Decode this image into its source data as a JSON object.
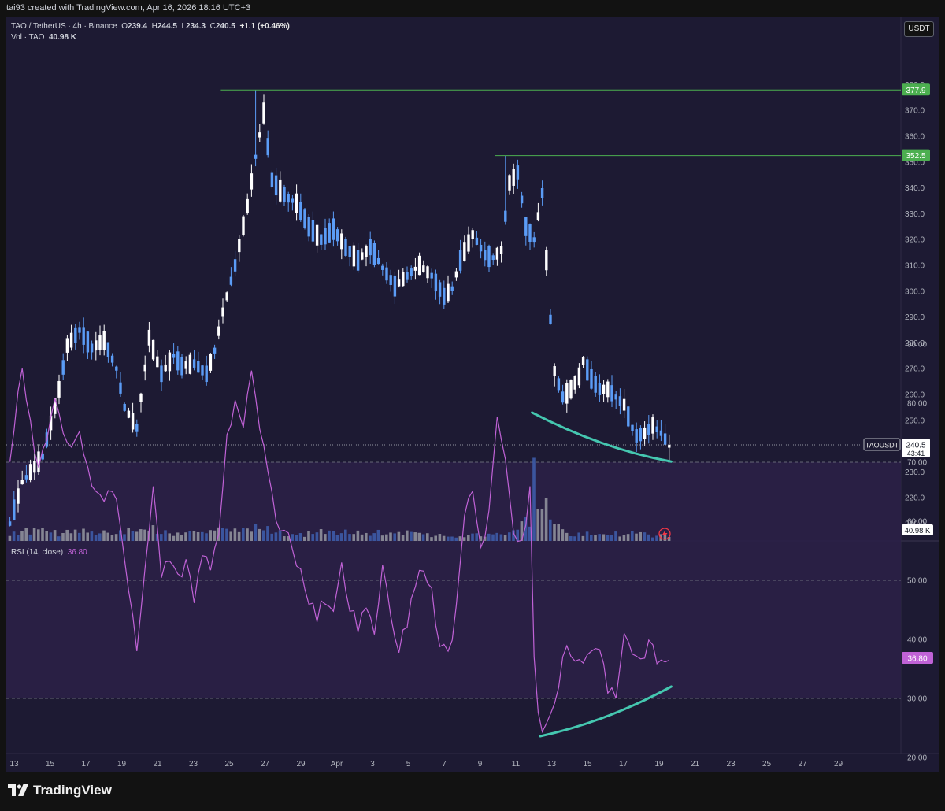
{
  "header": {
    "attribution": "tai93 created with TradingView.com, Apr 16, 2026 18:16 UTC+3"
  },
  "legend": {
    "symbol": "TAO / TetherUS · 4h · Binance",
    "o_label": "O",
    "o": "239.4",
    "h_label": "H",
    "h": "244.5",
    "l_label": "L",
    "l": "234.3",
    "c_label": "C",
    "c": "240.5",
    "change": "+1.1 (+0.46%)",
    "vol_label": "Vol · TAO",
    "vol": "40.98 K"
  },
  "currency_button": "USDT",
  "price_axis": {
    "ticks": [
      "380.0",
      "370.0",
      "360.0",
      "350.0",
      "340.0",
      "330.0",
      "320.0",
      "310.0",
      "300.0",
      "290.0",
      "280.0",
      "270.0",
      "260.0",
      "250.0",
      "240.0",
      "230.0",
      "220.0",
      "210.0"
    ],
    "markers": [
      {
        "label": "377.9",
        "price": 377.9,
        "color": "#4caf50"
      },
      {
        "label": "352.5",
        "price": 352.5,
        "color": "#4caf50"
      }
    ],
    "last_price": {
      "symbol": "TAOUSDT",
      "price": "240.5",
      "countdown": "43:41",
      "value": 240.5
    },
    "volume_label": "40.98 K"
  },
  "rsi": {
    "legend_title": "RSI (14, close)",
    "legend_value": "36.80",
    "ticks": [
      "90.00",
      "80.00",
      "70.00",
      "60.00",
      "50.00",
      "40.00",
      "30.00",
      "20.00"
    ],
    "value_label": "36.80",
    "overbought": 70,
    "midline": 50,
    "oversold": 30
  },
  "time_axis": [
    "13",
    "15",
    "17",
    "19",
    "21",
    "23",
    "25",
    "27",
    "29",
    "Apr",
    "3",
    "5",
    "7",
    "9",
    "11",
    "13",
    "15",
    "17",
    "19",
    "21",
    "23",
    "25",
    "27",
    "29"
  ],
  "footer": {
    "brand": "TradingView"
  },
  "colors": {
    "up": "#ffffff",
    "down": "#5b9cf6",
    "rsi_line": "#c062d6",
    "trendline": "#45c7b0",
    "level_line": "#4caf50",
    "pane_bg": "#1d1a33",
    "rsi_band": "#2b2046"
  },
  "chart_data": {
    "type": "candlestick",
    "symbol": "TAO / TetherUS",
    "timeframe": "4h",
    "exchange": "Binance",
    "last_ohlc": {
      "open": 239.4,
      "high": 244.5,
      "low": 234.3,
      "close": 240.5,
      "change": 1.1,
      "change_pct": 0.46
    },
    "ylim": [
      203,
      382
    ],
    "rsi_ylim": [
      20,
      90
    ],
    "x_labels": [
      "13",
      "15",
      "17",
      "19",
      "21",
      "23",
      "25",
      "27",
      "29",
      "Apr",
      "3",
      "5",
      "7",
      "9",
      "11",
      "13",
      "15",
      "17",
      "19",
      "21",
      "23",
      "25",
      "27",
      "29"
    ],
    "price_path": [
      [
        0,
        210
      ],
      [
        3,
        226
      ],
      [
        8,
        236
      ],
      [
        12,
        262
      ],
      [
        14,
        279
      ],
      [
        17,
        285
      ],
      [
        20,
        278
      ],
      [
        23,
        281
      ],
      [
        26,
        270
      ],
      [
        28,
        255
      ],
      [
        31,
        247
      ],
      [
        34,
        282
      ],
      [
        37,
        268
      ],
      [
        40,
        275
      ],
      [
        42,
        271
      ],
      [
        45,
        272
      ],
      [
        48,
        268
      ],
      [
        50,
        277
      ],
      [
        52,
        292
      ],
      [
        55,
        310
      ],
      [
        58,
        333
      ],
      [
        60,
        352
      ],
      [
        62,
        369
      ],
      [
        64,
        343
      ],
      [
        66,
        339
      ],
      [
        68,
        336
      ],
      [
        70,
        334
      ],
      [
        73,
        325
      ],
      [
        76,
        320
      ],
      [
        79,
        324
      ],
      [
        82,
        317
      ],
      [
        85,
        312
      ],
      [
        88,
        317
      ],
      [
        91,
        309
      ],
      [
        94,
        302
      ],
      [
        97,
        306
      ],
      [
        100,
        310
      ],
      [
        103,
        306
      ],
      [
        106,
        298
      ],
      [
        108,
        301
      ],
      [
        110,
        312
      ],
      [
        113,
        322
      ],
      [
        116,
        314
      ],
      [
        118,
        313
      ],
      [
        120,
        316
      ],
      [
        122,
        342
      ],
      [
        124,
        346
      ],
      [
        126,
        325
      ],
      [
        128,
        320
      ],
      [
        130,
        338
      ],
      [
        131,
        312
      ],
      [
        132,
        289
      ],
      [
        133,
        269
      ],
      [
        135,
        259
      ],
      [
        137,
        262
      ],
      [
        139,
        267
      ],
      [
        140,
        273
      ],
      [
        142,
        266
      ],
      [
        144,
        262
      ],
      [
        146,
        262
      ],
      [
        148,
        259
      ],
      [
        150,
        256
      ],
      [
        152,
        247
      ],
      [
        153,
        244
      ],
      [
        155,
        245
      ],
      [
        157,
        248
      ],
      [
        159,
        245
      ],
      [
        161,
        240.5
      ]
    ],
    "volume_path": [
      [
        0,
        10
      ],
      [
        6,
        14
      ],
      [
        12,
        9
      ],
      [
        18,
        14
      ],
      [
        26,
        9
      ],
      [
        33,
        17
      ],
      [
        40,
        10
      ],
      [
        48,
        9
      ],
      [
        52,
        16
      ],
      [
        56,
        12
      ],
      [
        60,
        17
      ],
      [
        66,
        10
      ],
      [
        72,
        9
      ],
      [
        80,
        12
      ],
      [
        88,
        8
      ],
      [
        94,
        14
      ],
      [
        100,
        8
      ],
      [
        106,
        7
      ],
      [
        112,
        8
      ],
      [
        116,
        8
      ],
      [
        119,
        15
      ],
      [
        123,
        10
      ],
      [
        126,
        30
      ],
      [
        127,
        18
      ],
      [
        128,
        74
      ],
      [
        129,
        45
      ],
      [
        130,
        38
      ],
      [
        131,
        50
      ],
      [
        132,
        40
      ],
      [
        134,
        16
      ],
      [
        136,
        9
      ],
      [
        140,
        10
      ],
      [
        146,
        11
      ],
      [
        152,
        9
      ],
      [
        158,
        6
      ],
      [
        161,
        6
      ]
    ],
    "rsi_path": [
      [
        0,
        70
      ],
      [
        2,
        82
      ],
      [
        3,
        85
      ],
      [
        5,
        76
      ],
      [
        7,
        68
      ],
      [
        9,
        74
      ],
      [
        11,
        80
      ],
      [
        13,
        76
      ],
      [
        15,
        72
      ],
      [
        17,
        74
      ],
      [
        19,
        69
      ],
      [
        21,
        65
      ],
      [
        23,
        64
      ],
      [
        25,
        66
      ],
      [
        27,
        60
      ],
      [
        29,
        48
      ],
      [
        31,
        38
      ],
      [
        33,
        53
      ],
      [
        35,
        66
      ],
      [
        37,
        50
      ],
      [
        39,
        54
      ],
      [
        41,
        50
      ],
      [
        43,
        53
      ],
      [
        45,
        47
      ],
      [
        47,
        54
      ],
      [
        49,
        52
      ],
      [
        51,
        58
      ],
      [
        53,
        74
      ],
      [
        55,
        80
      ],
      [
        57,
        77
      ],
      [
        59,
        85
      ],
      [
        61,
        76
      ],
      [
        63,
        68
      ],
      [
        65,
        60
      ],
      [
        67,
        59
      ],
      [
        69,
        56
      ],
      [
        71,
        51
      ],
      [
        73,
        47
      ],
      [
        75,
        44
      ],
      [
        77,
        47
      ],
      [
        79,
        45
      ],
      [
        81,
        52
      ],
      [
        83,
        46
      ],
      [
        85,
        42
      ],
      [
        87,
        45
      ],
      [
        89,
        41
      ],
      [
        91,
        52
      ],
      [
        93,
        44
      ],
      [
        95,
        39
      ],
      [
        97,
        42
      ],
      [
        99,
        50
      ],
      [
        101,
        52
      ],
      [
        103,
        48
      ],
      [
        105,
        39
      ],
      [
        107,
        37
      ],
      [
        109,
        45
      ],
      [
        111,
        62
      ],
      [
        113,
        64
      ],
      [
        115,
        55
      ],
      [
        117,
        62
      ],
      [
        119,
        78
      ],
      [
        121,
        71
      ],
      [
        123,
        59
      ],
      [
        125,
        56
      ],
      [
        127,
        65
      ],
      [
        128,
        36
      ],
      [
        129,
        28
      ],
      [
        130,
        25
      ],
      [
        132,
        27
      ],
      [
        134,
        32
      ],
      [
        136,
        40
      ],
      [
        138,
        36
      ],
      [
        140,
        36
      ],
      [
        142,
        38
      ],
      [
        144,
        38
      ],
      [
        146,
        32
      ],
      [
        148,
        30
      ],
      [
        150,
        40
      ],
      [
        152,
        38
      ],
      [
        154,
        36
      ],
      [
        156,
        40
      ],
      [
        158,
        36
      ],
      [
        161,
        36.8
      ]
    ],
    "horizontal_levels": [
      377.9,
      352.5
    ],
    "trendlines": [
      {
        "pane": "price",
        "points": [
          [
            128,
            253
          ],
          [
            145,
            239
          ],
          [
            162,
            234
          ]
        ]
      },
      {
        "pane": "rsi",
        "points": [
          [
            130,
            23.6
          ],
          [
            146,
            26
          ],
          [
            162,
            32
          ]
        ]
      }
    ],
    "level_lines": [
      {
        "price": 377.9,
        "from_bar": 52
      },
      {
        "price": 352.5,
        "from_bar": 119
      }
    ]
  }
}
